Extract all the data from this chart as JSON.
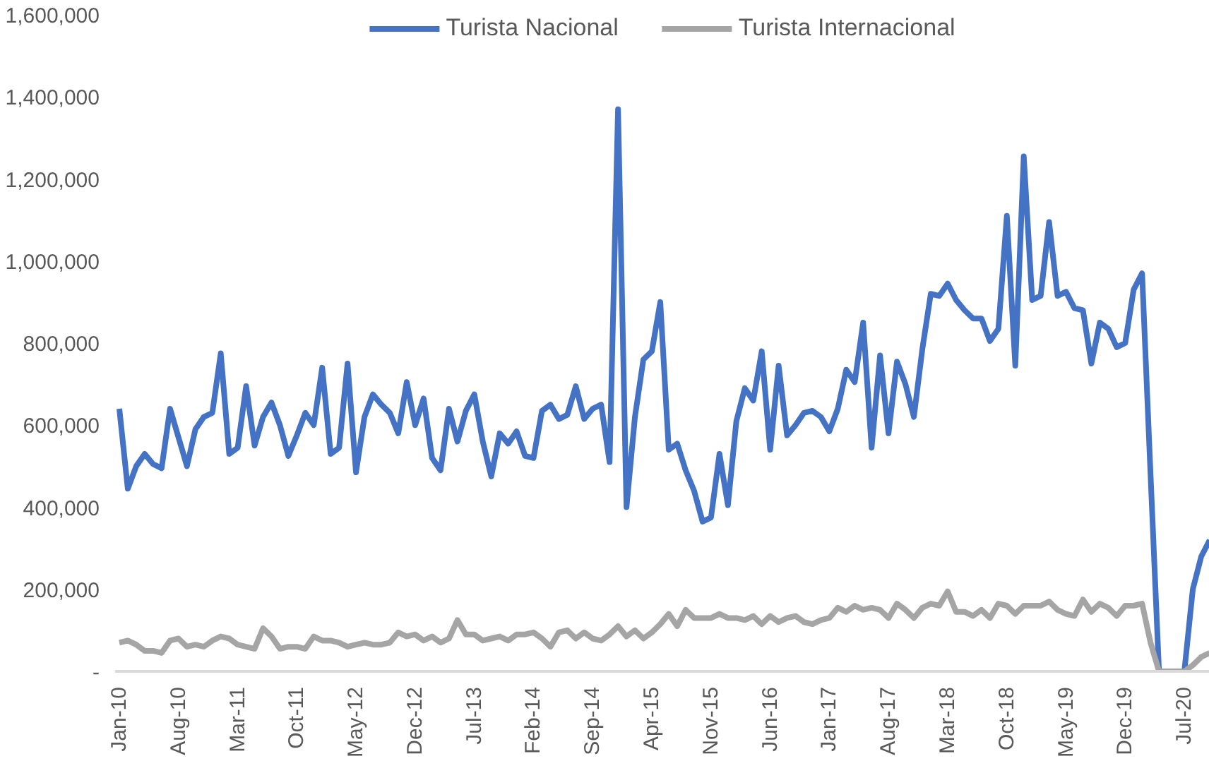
{
  "chart_data": {
    "type": "line",
    "categories": [
      "Jan-10",
      null,
      null,
      null,
      null,
      null,
      null,
      "Aug-10",
      null,
      null,
      null,
      null,
      null,
      null,
      "Mar-11",
      null,
      null,
      null,
      null,
      null,
      null,
      "Oct-11",
      null,
      null,
      null,
      null,
      null,
      null,
      "May-12",
      null,
      null,
      null,
      null,
      null,
      null,
      "Dec-12",
      null,
      null,
      null,
      null,
      null,
      null,
      "Jul-13",
      null,
      null,
      null,
      null,
      null,
      null,
      "Feb-14",
      null,
      null,
      null,
      null,
      null,
      null,
      "Sep-14",
      null,
      null,
      null,
      null,
      null,
      null,
      "Apr-15",
      null,
      null,
      null,
      null,
      null,
      null,
      "Nov-15",
      null,
      null,
      null,
      null,
      null,
      null,
      "Jun-16",
      null,
      null,
      null,
      null,
      null,
      null,
      "Jan-17",
      null,
      null,
      null,
      null,
      null,
      null,
      "Aug-17",
      null,
      null,
      null,
      null,
      null,
      null,
      "Mar-18",
      null,
      null,
      null,
      null,
      null,
      null,
      "Oct-18",
      null,
      null,
      null,
      null,
      null,
      null,
      "May-19",
      null,
      null,
      null,
      null,
      null,
      null,
      "Dec-19",
      null,
      null,
      null,
      null,
      null,
      null,
      "Jul-20",
      null,
      null,
      null
    ],
    "series": [
      {
        "name": "Turista Nacional",
        "color": "#4472c4",
        "values": [
          640000,
          445000,
          500000,
          530000,
          505000,
          495000,
          640000,
          570000,
          500000,
          590000,
          620000,
          630000,
          775000,
          530000,
          545000,
          695000,
          550000,
          620000,
          655000,
          600000,
          525000,
          575000,
          630000,
          600000,
          740000,
          530000,
          545000,
          750000,
          485000,
          620000,
          675000,
          650000,
          630000,
          580000,
          705000,
          600000,
          665000,
          520000,
          490000,
          640000,
          560000,
          635000,
          675000,
          560000,
          475000,
          580000,
          555000,
          585000,
          525000,
          520000,
          635000,
          650000,
          615000,
          625000,
          695000,
          615000,
          640000,
          650000,
          510000,
          1370000,
          400000,
          620000,
          760000,
          780000,
          900000,
          540000,
          555000,
          490000,
          440000,
          365000,
          375000,
          530000,
          405000,
          610000,
          690000,
          660000,
          780000,
          540000,
          745000,
          575000,
          600000,
          630000,
          635000,
          620000,
          585000,
          640000,
          735000,
          705000,
          850000,
          545000,
          770000,
          580000,
          755000,
          700000,
          620000,
          785000,
          920000,
          915000,
          945000,
          905000,
          880000,
          860000,
          860000,
          805000,
          835000,
          1110000,
          745000,
          1255000,
          905000,
          915000,
          1095000,
          915000,
          925000,
          885000,
          880000,
          750000,
          850000,
          835000,
          790000,
          800000,
          930000,
          970000,
          480000,
          0,
          0,
          0,
          0,
          200000,
          280000,
          320000
        ]
      },
      {
        "name": "Turista Internacional",
        "color": "#a5a5a5",
        "values": [
          70000,
          75000,
          65000,
          50000,
          50000,
          45000,
          75000,
          80000,
          60000,
          65000,
          60000,
          75000,
          85000,
          80000,
          65000,
          60000,
          55000,
          105000,
          85000,
          55000,
          60000,
          60000,
          55000,
          85000,
          75000,
          75000,
          70000,
          60000,
          65000,
          70000,
          65000,
          65000,
          70000,
          95000,
          85000,
          90000,
          75000,
          85000,
          70000,
          80000,
          125000,
          90000,
          90000,
          75000,
          80000,
          85000,
          75000,
          90000,
          90000,
          95000,
          80000,
          60000,
          95000,
          100000,
          80000,
          95000,
          80000,
          75000,
          90000,
          110000,
          85000,
          100000,
          80000,
          95000,
          115000,
          140000,
          110000,
          150000,
          130000,
          130000,
          130000,
          140000,
          130000,
          130000,
          125000,
          135000,
          115000,
          135000,
          120000,
          130000,
          135000,
          120000,
          115000,
          125000,
          130000,
          155000,
          145000,
          160000,
          150000,
          155000,
          150000,
          130000,
          165000,
          150000,
          130000,
          155000,
          165000,
          160000,
          195000,
          145000,
          145000,
          135000,
          150000,
          130000,
          165000,
          160000,
          140000,
          160000,
          160000,
          160000,
          170000,
          150000,
          140000,
          135000,
          175000,
          145000,
          165000,
          155000,
          135000,
          160000,
          160000,
          165000,
          70000,
          0,
          0,
          0,
          0,
          15000,
          35000,
          45000
        ]
      }
    ],
    "ylim": [
      0,
      1600000
    ],
    "yticks": [
      {
        "value": 0,
        "label": "-"
      },
      {
        "value": 200000,
        "label": "200,000"
      },
      {
        "value": 400000,
        "label": "400,000"
      },
      {
        "value": 600000,
        "label": "600,000"
      },
      {
        "value": 800000,
        "label": "800,000"
      },
      {
        "value": 1000000,
        "label": "1,000,000"
      },
      {
        "value": 1200000,
        "label": "1,200,000"
      },
      {
        "value": 1400000,
        "label": "1,400,000"
      },
      {
        "value": 1600000,
        "label": "1,600,000"
      }
    ],
    "grid": false,
    "legend": "top",
    "marker": "none",
    "line_style": "solid"
  }
}
